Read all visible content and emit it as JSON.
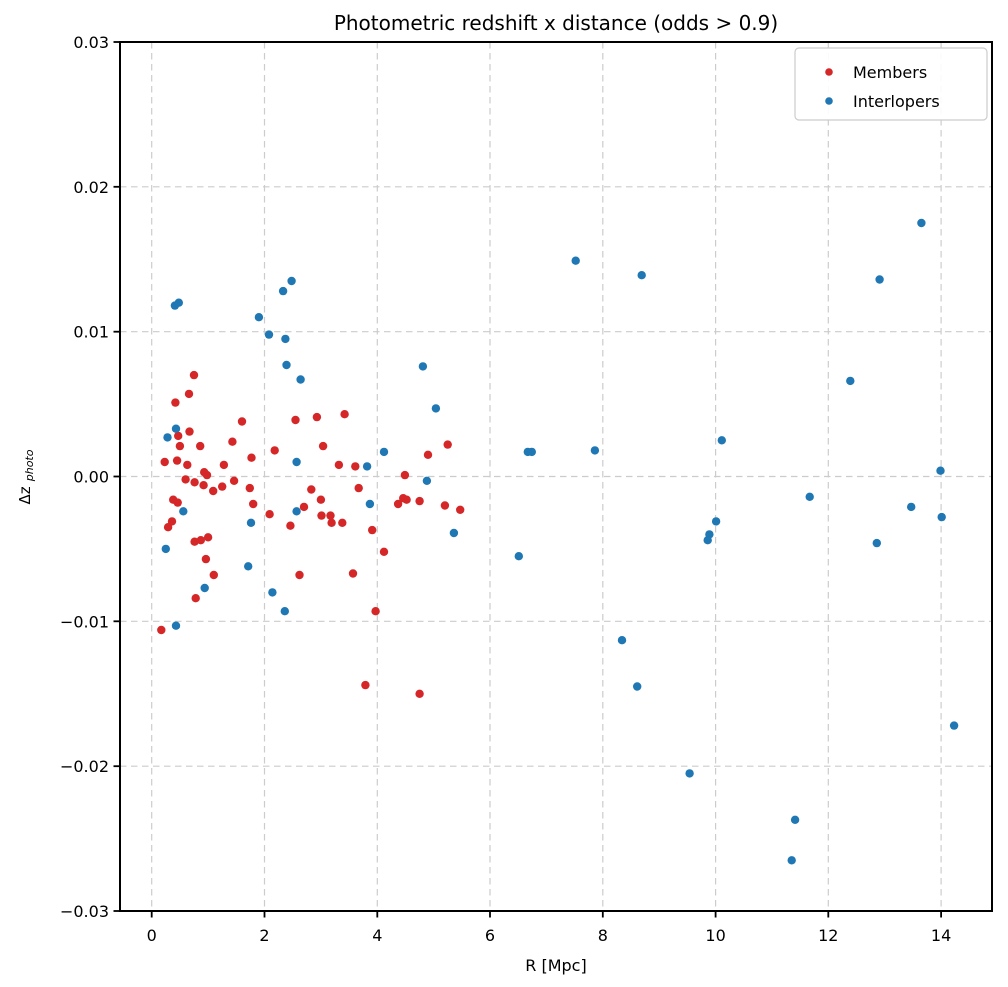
{
  "title": "Photometric redshift x distance (odds > 0.9)",
  "colors": {
    "members": "#d62728",
    "interlopers": "#1f77b4",
    "grid": "#cccccc",
    "spine": "#000000",
    "legend_border": "#cccccc",
    "background": "#ffffff"
  },
  "legend": {
    "position": "upper right",
    "items": [
      {
        "label": "Members",
        "color": "#d62728"
      },
      {
        "label": "Interlopers",
        "color": "#1f77b4"
      }
    ]
  },
  "chart_data": {
    "type": "scatter",
    "title": "Photometric redshift x distance (odds > 0.9)",
    "xlabel": "R [Mpc]",
    "ylabel_main": "Δz",
    "ylabel_sub": "photo",
    "xlim": [
      -0.563,
      14.903
    ],
    "ylim": [
      -0.03,
      0.03
    ],
    "xticks": [
      0,
      2,
      4,
      6,
      8,
      10,
      12,
      14
    ],
    "xtick_labels": [
      "0",
      "2",
      "4",
      "6",
      "8",
      "10",
      "12",
      "14"
    ],
    "yticks": [
      0.03,
      0.02,
      0.01,
      0.0,
      -0.01,
      -0.02,
      -0.03
    ],
    "ytick_labels": [
      "0.03",
      "0.02",
      "0.01",
      "0.00",
      "−0.01",
      "−0.02",
      "−0.03"
    ],
    "grid": true,
    "legend_position": "upper right",
    "marker_radius": 4.2,
    "series": [
      {
        "name": "Members",
        "color": "#d62728",
        "points": [
          [
            0.75,
            0.007
          ],
          [
            0.66,
            0.0057
          ],
          [
            0.42,
            0.0051
          ],
          [
            1.6,
            0.0038
          ],
          [
            2.55,
            0.0039
          ],
          [
            2.93,
            0.0041
          ],
          [
            3.42,
            0.0043
          ],
          [
            3.04,
            0.0021
          ],
          [
            0.47,
            0.0028
          ],
          [
            0.67,
            0.0031
          ],
          [
            0.5,
            0.0021
          ],
          [
            0.86,
            0.0021
          ],
          [
            1.43,
            0.0024
          ],
          [
            2.18,
            0.0018
          ],
          [
            0.23,
            0.001
          ],
          [
            0.45,
            0.0011
          ],
          [
            0.63,
            0.0008
          ],
          [
            1.28,
            0.0008
          ],
          [
            1.77,
            0.0013
          ],
          [
            0.93,
            0.0003
          ],
          [
            0.98,
            0.0001
          ],
          [
            0.6,
            -0.0002
          ],
          [
            0.76,
            -0.0004
          ],
          [
            0.92,
            -0.0006
          ],
          [
            1.25,
            -0.0007
          ],
          [
            1.46,
            -0.0003
          ],
          [
            1.09,
            -0.001
          ],
          [
            1.74,
            -0.0008
          ],
          [
            1.8,
            -0.0019
          ],
          [
            0.38,
            -0.0016
          ],
          [
            0.46,
            -0.0018
          ],
          [
            0.36,
            -0.0031
          ],
          [
            0.29,
            -0.0035
          ],
          [
            0.76,
            -0.0045
          ],
          [
            0.87,
            -0.0044
          ],
          [
            1.0,
            -0.0042
          ],
          [
            0.96,
            -0.0057
          ],
          [
            1.1,
            -0.0068
          ],
          [
            0.78,
            -0.0084
          ],
          [
            0.17,
            -0.0106
          ],
          [
            2.09,
            -0.0026
          ],
          [
            2.46,
            -0.0034
          ],
          [
            2.7,
            -0.0021
          ],
          [
            2.83,
            -0.0009
          ],
          [
            3.0,
            -0.0016
          ],
          [
            3.01,
            -0.0027
          ],
          [
            3.17,
            -0.0027
          ],
          [
            3.19,
            -0.0032
          ],
          [
            3.38,
            -0.0032
          ],
          [
            3.67,
            -0.0008
          ],
          [
            4.49,
            0.0001
          ],
          [
            3.32,
            0.0008
          ],
          [
            3.61,
            0.0007
          ],
          [
            4.37,
            -0.0019
          ],
          [
            4.46,
            -0.0015
          ],
          [
            4.52,
            -0.0016
          ],
          [
            4.75,
            -0.0017
          ],
          [
            5.2,
            -0.002
          ],
          [
            5.47,
            -0.0023
          ],
          [
            3.91,
            -0.0037
          ],
          [
            4.12,
            -0.0052
          ],
          [
            3.57,
            -0.0067
          ],
          [
            2.62,
            -0.0068
          ],
          [
            5.25,
            0.0022
          ],
          [
            4.9,
            0.0015
          ],
          [
            3.97,
            -0.0093
          ],
          [
            3.79,
            -0.0144
          ],
          [
            4.75,
            -0.015
          ]
        ]
      },
      {
        "name": "Interlopers",
        "color": "#1f77b4",
        "points": [
          [
            0.41,
            0.0118
          ],
          [
            0.48,
            0.012
          ],
          [
            1.9,
            0.011
          ],
          [
            2.08,
            0.0098
          ],
          [
            2.33,
            0.0128
          ],
          [
            2.48,
            0.0135
          ],
          [
            2.37,
            0.0095
          ],
          [
            2.39,
            0.0077
          ],
          [
            2.64,
            0.0067
          ],
          [
            0.43,
            0.0033
          ],
          [
            0.28,
            0.0027
          ],
          [
            2.57,
            0.001
          ],
          [
            0.56,
            -0.0024
          ],
          [
            1.76,
            -0.0032
          ],
          [
            0.25,
            -0.005
          ],
          [
            1.71,
            -0.0062
          ],
          [
            0.94,
            -0.0077
          ],
          [
            0.43,
            -0.0103
          ],
          [
            2.14,
            -0.008
          ],
          [
            2.36,
            -0.0093
          ],
          [
            2.57,
            -0.0024
          ],
          [
            3.82,
            0.0007
          ],
          [
            4.12,
            0.0017
          ],
          [
            4.88,
            -0.0003
          ],
          [
            3.87,
            -0.0019
          ],
          [
            5.36,
            -0.0039
          ],
          [
            4.81,
            0.0076
          ],
          [
            5.04,
            0.0047
          ],
          [
            6.67,
            0.0017
          ],
          [
            6.74,
            0.0017
          ],
          [
            7.86,
            0.0018
          ],
          [
            7.52,
            0.0149
          ],
          [
            8.69,
            0.0139
          ],
          [
            13.65,
            0.0175
          ],
          [
            12.91,
            0.0136
          ],
          [
            12.39,
            0.0066
          ],
          [
            10.11,
            0.0025
          ],
          [
            13.99,
            0.0004
          ],
          [
            11.67,
            -0.0014
          ],
          [
            13.47,
            -0.0021
          ],
          [
            14.01,
            -0.0028
          ],
          [
            10.01,
            -0.0031
          ],
          [
            9.89,
            -0.004
          ],
          [
            9.86,
            -0.0044
          ],
          [
            12.86,
            -0.0046
          ],
          [
            8.34,
            -0.0113
          ],
          [
            8.61,
            -0.0145
          ],
          [
            9.54,
            -0.0205
          ],
          [
            14.23,
            -0.0172
          ],
          [
            11.41,
            -0.0237
          ],
          [
            11.35,
            -0.0265
          ],
          [
            6.51,
            -0.0055
          ]
        ]
      }
    ]
  }
}
